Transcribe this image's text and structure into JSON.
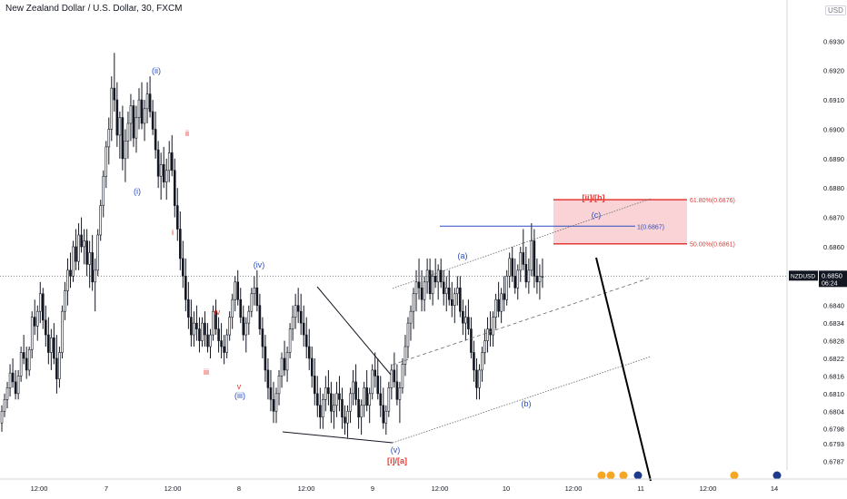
{
  "title": "New Zealand Dollar / U.S. Dollar, 30, FXCM",
  "currency_badge": "USD",
  "price_tag": {
    "symbol": "NZDUSD",
    "price": "0.6850",
    "countdown": "06:24"
  },
  "colors": {
    "up": "#131722",
    "down": "#131722",
    "red": "#e53935",
    "blue": "#2a4dc0",
    "fib_box": "#f8c8cc"
  },
  "chart_data": {
    "type": "candlestick",
    "title": "New Zealand Dollar / U.S. Dollar, 30, FXCM",
    "xlabel": "",
    "ylabel": "",
    "ylim": [
      0.6784,
      0.6944
    ],
    "yticks": [
      "0.6930",
      "0.6920",
      "0.6910",
      "0.6900",
      "0.6890",
      "0.6880",
      "0.6870",
      "0.6860",
      "0.6850",
      "0.6840",
      "0.6834",
      "0.6828",
      "0.6822",
      "0.6816",
      "0.6810",
      "0.6804",
      "0.6798",
      "0.6793",
      "0.6787"
    ],
    "xticks": [
      "12:00",
      "7",
      "12:00",
      "8",
      "12:00",
      "9",
      "12:00",
      "10",
      "12:00",
      "11",
      "12:00",
      "14"
    ],
    "current_price": 0.685,
    "fib_levels": [
      {
        "label": "61.80%(0.6876)",
        "value": 0.6876
      },
      {
        "label": "50.00%(0.6861)",
        "value": 0.6861
      },
      {
        "label": "1(0.6867)",
        "value": 0.6867
      }
    ],
    "wave_labels": [
      {
        "text": "(ii)",
        "price": 0.692,
        "idx": 58,
        "color": "blue"
      },
      {
        "text": "ii",
        "price": 0.6896,
        "idx": 69,
        "color": "red"
      },
      {
        "text": "(i)",
        "price": 0.688,
        "idx": 50,
        "color": "blue"
      },
      {
        "text": "i",
        "price": 0.6862,
        "idx": 63,
        "color": "red"
      },
      {
        "text": "(iv)",
        "price": 0.6853,
        "idx": 95,
        "color": "blue"
      },
      {
        "text": "iv",
        "price": 0.6838,
        "idx": 80,
        "color": "red"
      },
      {
        "text": "iii",
        "price": 0.6822,
        "idx": 76,
        "color": "red"
      },
      {
        "text": "v",
        "price": 0.6817,
        "idx": 88,
        "color": "red"
      },
      {
        "text": "(iii)",
        "price": 0.6814,
        "idx": 88,
        "color": "blue"
      },
      {
        "text": "(a)",
        "price": 0.6857,
        "idx": 170,
        "color": "blue"
      },
      {
        "text": "(b)",
        "price": 0.6809,
        "idx": 193,
        "color": "blue"
      },
      {
        "text": "(c)",
        "price": 0.6868,
        "idx": 218,
        "color": "blue"
      },
      {
        "text": "[ii]/[b]",
        "price": 0.6874,
        "idx": 217,
        "color": "red"
      },
      {
        "text": "(v)",
        "price": 0.6793,
        "idx": 145,
        "color": "blue"
      },
      {
        "text": "[i]/[a]",
        "price": 0.6788,
        "idx": 145,
        "color": "red"
      }
    ],
    "candles_note": "OHLC series, ~240 bars, 30-minute"
  },
  "candles": [
    [
      0.68,
      0.6806,
      0.6797,
      0.6804
    ],
    [
      0.6804,
      0.681,
      0.6802,
      0.6808
    ],
    [
      0.6808,
      0.6814,
      0.6805,
      0.6812
    ],
    [
      0.6812,
      0.682,
      0.6809,
      0.6817
    ],
    [
      0.6817,
      0.6822,
      0.6812,
      0.6814
    ],
    [
      0.6814,
      0.6818,
      0.6808,
      0.681
    ],
    [
      0.681,
      0.6818,
      0.6808,
      0.6816
    ],
    [
      0.6816,
      0.6826,
      0.6814,
      0.6824
    ],
    [
      0.6824,
      0.683,
      0.682,
      0.6822
    ],
    [
      0.6822,
      0.6826,
      0.6815,
      0.6818
    ],
    [
      0.6818,
      0.6826,
      0.6816,
      0.6825
    ],
    [
      0.6825,
      0.6838,
      0.6822,
      0.6836
    ],
    [
      0.6836,
      0.6842,
      0.683,
      0.6833
    ],
    [
      0.6833,
      0.684,
      0.6828,
      0.6838
    ],
    [
      0.6838,
      0.6848,
      0.6834,
      0.6844
    ],
    [
      0.6844,
      0.6846,
      0.6832,
      0.6835
    ],
    [
      0.6835,
      0.684,
      0.6826,
      0.683
    ],
    [
      0.683,
      0.6836,
      0.682,
      0.6824
    ],
    [
      0.6824,
      0.6832,
      0.6818,
      0.6829
    ],
    [
      0.6829,
      0.6834,
      0.682,
      0.6822
    ],
    [
      0.6822,
      0.683,
      0.681,
      0.6815
    ],
    [
      0.6815,
      0.6826,
      0.6812,
      0.6824
    ],
    [
      0.6824,
      0.684,
      0.6822,
      0.6838
    ],
    [
      0.6838,
      0.6848,
      0.6835,
      0.6845
    ],
    [
      0.6845,
      0.6856,
      0.684,
      0.6852
    ],
    [
      0.6852,
      0.6858,
      0.6846,
      0.685
    ],
    [
      0.685,
      0.6862,
      0.6848,
      0.686
    ],
    [
      0.686,
      0.6866,
      0.6852,
      0.6855
    ],
    [
      0.6855,
      0.6868,
      0.6852,
      0.6864
    ],
    [
      0.6864,
      0.687,
      0.6858,
      0.686
    ],
    [
      0.686,
      0.6866,
      0.6854,
      0.6862
    ],
    [
      0.6862,
      0.6866,
      0.685,
      0.6854
    ],
    [
      0.6854,
      0.6862,
      0.6846,
      0.6858
    ],
    [
      0.6858,
      0.6864,
      0.6845,
      0.6848
    ],
    [
      0.6848,
      0.6856,
      0.6838,
      0.6852
    ],
    [
      0.6852,
      0.6866,
      0.685,
      0.6864
    ],
    [
      0.6864,
      0.6876,
      0.6862,
      0.6874
    ],
    [
      0.6874,
      0.6886,
      0.687,
      0.6884
    ],
    [
      0.6884,
      0.6896,
      0.688,
      0.6894
    ],
    [
      0.6894,
      0.6904,
      0.6888,
      0.69
    ],
    [
      0.69,
      0.6918,
      0.6896,
      0.6914
    ],
    [
      0.6914,
      0.6926,
      0.6906,
      0.691
    ],
    [
      0.691,
      0.6916,
      0.6894,
      0.6898
    ],
    [
      0.6898,
      0.6906,
      0.689,
      0.6904
    ],
    [
      0.6904,
      0.6908,
      0.6886,
      0.689
    ],
    [
      0.689,
      0.69,
      0.6882,
      0.6896
    ],
    [
      0.6896,
      0.6906,
      0.689,
      0.6902
    ],
    [
      0.6902,
      0.6912,
      0.6896,
      0.6908
    ],
    [
      0.6908,
      0.691,
      0.6894,
      0.6897
    ],
    [
      0.6897,
      0.6908,
      0.6892,
      0.6904
    ],
    [
      0.6904,
      0.6914,
      0.69,
      0.691
    ],
    [
      0.691,
      0.6916,
      0.69,
      0.6902
    ],
    [
      0.6902,
      0.691,
      0.6896,
      0.6907
    ],
    [
      0.6907,
      0.6916,
      0.6902,
      0.6912
    ],
    [
      0.6912,
      0.6918,
      0.6904,
      0.6906
    ],
    [
      0.6906,
      0.691,
      0.6898,
      0.69
    ],
    [
      0.69,
      0.6906,
      0.689,
      0.6893
    ],
    [
      0.6893,
      0.6896,
      0.688,
      0.6884
    ],
    [
      0.6884,
      0.6892,
      0.6876,
      0.6888
    ],
    [
      0.6888,
      0.6894,
      0.688,
      0.6882
    ],
    [
      0.6882,
      0.689,
      0.6876,
      0.6886
    ],
    [
      0.6886,
      0.6896,
      0.6882,
      0.6892
    ],
    [
      0.6892,
      0.6898,
      0.6884,
      0.6886
    ],
    [
      0.6886,
      0.689,
      0.687,
      0.6874
    ],
    [
      0.6874,
      0.688,
      0.6862,
      0.6866
    ],
    [
      0.6866,
      0.6872,
      0.6852,
      0.6856
    ],
    [
      0.6856,
      0.6862,
      0.6846,
      0.685
    ],
    [
      0.685,
      0.6856,
      0.6838,
      0.6842
    ],
    [
      0.6842,
      0.6848,
      0.6832,
      0.6836
    ],
    [
      0.6836,
      0.6842,
      0.6826,
      0.683
    ],
    [
      0.683,
      0.6838,
      0.6826,
      0.6834
    ],
    [
      0.6834,
      0.684,
      0.6828,
      0.6832
    ],
    [
      0.6832,
      0.6836,
      0.6824,
      0.6828
    ],
    [
      0.6828,
      0.6836,
      0.6826,
      0.6834
    ],
    [
      0.6834,
      0.6838,
      0.6826,
      0.683
    ],
    [
      0.683,
      0.6834,
      0.6824,
      0.6826
    ],
    [
      0.6826,
      0.6832,
      0.6822,
      0.683
    ],
    [
      0.683,
      0.684,
      0.6828,
      0.6838
    ],
    [
      0.6838,
      0.6842,
      0.683,
      0.6832
    ],
    [
      0.6832,
      0.6836,
      0.6824,
      0.6828
    ],
    [
      0.6828,
      0.6834,
      0.6822,
      0.6826
    ],
    [
      0.6826,
      0.683,
      0.682,
      0.6824
    ],
    [
      0.6824,
      0.6832,
      0.6822,
      0.683
    ],
    [
      0.683,
      0.6838,
      0.6828,
      0.6836
    ],
    [
      0.6836,
      0.6844,
      0.6832,
      0.6842
    ],
    [
      0.6842,
      0.685,
      0.6838,
      0.6848
    ],
    [
      0.6848,
      0.6852,
      0.684,
      0.6842
    ],
    [
      0.6842,
      0.6846,
      0.6834,
      0.6836
    ],
    [
      0.6836,
      0.684,
      0.6828,
      0.683
    ],
    [
      0.683,
      0.6836,
      0.6824,
      0.6834
    ],
    [
      0.6834,
      0.684,
      0.683,
      0.6838
    ],
    [
      0.6838,
      0.6846,
      0.6836,
      0.6844
    ],
    [
      0.6844,
      0.685,
      0.684,
      0.6846
    ],
    [
      0.6846,
      0.6852,
      0.6838,
      0.684
    ],
    [
      0.684,
      0.6844,
      0.683,
      0.6832
    ],
    [
      0.6832,
      0.6836,
      0.6822,
      0.6826
    ],
    [
      0.6826,
      0.683,
      0.6814,
      0.6818
    ],
    [
      0.6818,
      0.6822,
      0.6808,
      0.6812
    ],
    [
      0.6812,
      0.6818,
      0.6804,
      0.6808
    ],
    [
      0.6808,
      0.6814,
      0.68,
      0.6804
    ],
    [
      0.6804,
      0.6812,
      0.68,
      0.681
    ],
    [
      0.681,
      0.6818,
      0.6806,
      0.6816
    ],
    [
      0.6816,
      0.6824,
      0.6812,
      0.6822
    ],
    [
      0.6822,
      0.6828,
      0.6816,
      0.6818
    ],
    [
      0.6818,
      0.6826,
      0.6814,
      0.6824
    ],
    [
      0.6824,
      0.6834,
      0.6822,
      0.6832
    ],
    [
      0.6832,
      0.684,
      0.6828,
      0.6836
    ],
    [
      0.6836,
      0.6844,
      0.6832,
      0.684
    ],
    [
      0.684,
      0.6846,
      0.6834,
      0.6838
    ],
    [
      0.6838,
      0.6844,
      0.683,
      0.6834
    ],
    [
      0.6834,
      0.684,
      0.6826,
      0.683
    ],
    [
      0.683,
      0.6836,
      0.6822,
      0.6826
    ],
    [
      0.6826,
      0.6832,
      0.6818,
      0.6822
    ],
    [
      0.6822,
      0.6826,
      0.6812,
      0.6816
    ],
    [
      0.6816,
      0.6822,
      0.6806,
      0.681
    ],
    [
      0.681,
      0.6816,
      0.6802,
      0.6806
    ],
    [
      0.6806,
      0.6812,
      0.6798,
      0.6802
    ],
    [
      0.6802,
      0.681,
      0.6798,
      0.6808
    ],
    [
      0.6808,
      0.6816,
      0.6804,
      0.6812
    ],
    [
      0.6812,
      0.6818,
      0.6806,
      0.681
    ],
    [
      0.681,
      0.6814,
      0.68,
      0.6804
    ],
    [
      0.6804,
      0.681,
      0.6798,
      0.6806
    ],
    [
      0.6806,
      0.6814,
      0.6802,
      0.681
    ],
    [
      0.681,
      0.6816,
      0.6804,
      0.6808
    ],
    [
      0.6808,
      0.6812,
      0.6798,
      0.6802
    ],
    [
      0.6802,
      0.6806,
      0.6796,
      0.68
    ],
    [
      0.68,
      0.6806,
      0.6795,
      0.6804
    ],
    [
      0.6804,
      0.6812,
      0.68,
      0.681
    ],
    [
      0.681,
      0.6818,
      0.6806,
      0.6814
    ],
    [
      0.6814,
      0.682,
      0.6806,
      0.6808
    ],
    [
      0.6808,
      0.6812,
      0.6798,
      0.6802
    ],
    [
      0.6802,
      0.6808,
      0.6796,
      0.6806
    ],
    [
      0.6806,
      0.6814,
      0.6802,
      0.6812
    ],
    [
      0.6812,
      0.6818,
      0.6804,
      0.6806
    ],
    [
      0.6806,
      0.6812,
      0.68,
      0.681
    ],
    [
      0.681,
      0.682,
      0.6808,
      0.6818
    ],
    [
      0.6818,
      0.6824,
      0.6812,
      0.6816
    ],
    [
      0.6816,
      0.6822,
      0.6808,
      0.681
    ],
    [
      0.681,
      0.6816,
      0.6802,
      0.6806
    ],
    [
      0.6806,
      0.6812,
      0.6798,
      0.68
    ],
    [
      0.68,
      0.6806,
      0.6796,
      0.6804
    ],
    [
      0.6804,
      0.6814,
      0.6802,
      0.6812
    ],
    [
      0.6812,
      0.682,
      0.6808,
      0.6818
    ],
    [
      0.6818,
      0.6824,
      0.6812,
      0.6814
    ],
    [
      0.6814,
      0.682,
      0.6806,
      0.6808
    ],
    [
      0.6808,
      0.6814,
      0.68,
      0.6812
    ],
    [
      0.6812,
      0.6822,
      0.681,
      0.682
    ],
    [
      0.682,
      0.683,
      0.6816,
      0.6826
    ],
    [
      0.6826,
      0.6836,
      0.6822,
      0.6834
    ],
    [
      0.6834,
      0.684,
      0.6828,
      0.6838
    ],
    [
      0.6838,
      0.6846,
      0.6832,
      0.6844
    ],
    [
      0.6844,
      0.6852,
      0.6838,
      0.6848
    ],
    [
      0.6848,
      0.6856,
      0.6842,
      0.6846
    ],
    [
      0.6846,
      0.6852,
      0.6838,
      0.6842
    ],
    [
      0.6842,
      0.685,
      0.6838,
      0.6848
    ],
    [
      0.6848,
      0.6856,
      0.6844,
      0.6852
    ],
    [
      0.6852,
      0.6856,
      0.6842,
      0.6844
    ],
    [
      0.6844,
      0.6852,
      0.684,
      0.685
    ],
    [
      0.685,
      0.6856,
      0.6846,
      0.6848
    ],
    [
      0.6848,
      0.6854,
      0.6842,
      0.6852
    ],
    [
      0.6852,
      0.6856,
      0.6846,
      0.6848
    ],
    [
      0.6848,
      0.6852,
      0.684,
      0.6844
    ],
    [
      0.6844,
      0.685,
      0.6838,
      0.6846
    ],
    [
      0.6846,
      0.6852,
      0.684,
      0.6842
    ],
    [
      0.6842,
      0.6848,
      0.6836,
      0.684
    ],
    [
      0.684,
      0.6846,
      0.6834,
      0.6844
    ],
    [
      0.6844,
      0.685,
      0.684,
      0.6846
    ],
    [
      0.6846,
      0.685,
      0.6836,
      0.6838
    ],
    [
      0.6838,
      0.6842,
      0.683,
      0.6834
    ],
    [
      0.6834,
      0.684,
      0.6828,
      0.6836
    ],
    [
      0.6836,
      0.6842,
      0.683,
      0.6832
    ],
    [
      0.6832,
      0.6836,
      0.6822,
      0.6824
    ],
    [
      0.6824,
      0.6828,
      0.6814,
      0.6818
    ],
    [
      0.6818,
      0.6822,
      0.6808,
      0.6812
    ],
    [
      0.6812,
      0.682,
      0.6808,
      0.6818
    ],
    [
      0.6818,
      0.6826,
      0.6814,
      0.6824
    ],
    [
      0.6824,
      0.6832,
      0.682,
      0.6828
    ],
    [
      0.6828,
      0.6836,
      0.6824,
      0.6832
    ],
    [
      0.6832,
      0.6838,
      0.6826,
      0.683
    ],
    [
      0.683,
      0.6838,
      0.6826,
      0.6836
    ],
    [
      0.6836,
      0.6844,
      0.6832,
      0.6842
    ],
    [
      0.6842,
      0.6848,
      0.6836,
      0.6838
    ],
    [
      0.6838,
      0.6846,
      0.6834,
      0.6844
    ],
    [
      0.6844,
      0.685,
      0.6838,
      0.6842
    ],
    [
      0.6842,
      0.6852,
      0.684,
      0.685
    ],
    [
      0.685,
      0.6858,
      0.6846,
      0.6856
    ],
    [
      0.6856,
      0.686,
      0.6848,
      0.685
    ],
    [
      0.685,
      0.6856,
      0.6844,
      0.6846
    ],
    [
      0.6846,
      0.6854,
      0.6842,
      0.6852
    ],
    [
      0.6852,
      0.686,
      0.6848,
      0.6858
    ],
    [
      0.6858,
      0.6866,
      0.6852,
      0.6854
    ],
    [
      0.6854,
      0.686,
      0.6846,
      0.6848
    ],
    [
      0.6848,
      0.6856,
      0.6844,
      0.6852
    ],
    [
      0.6852,
      0.6868,
      0.685,
      0.6862
    ],
    [
      0.6862,
      0.6866,
      0.6846,
      0.685
    ],
    [
      0.685,
      0.6856,
      0.6844,
      0.6848
    ],
    [
      0.6848,
      0.6854,
      0.6842,
      0.685
    ],
    [
      0.685,
      0.6856,
      0.6846,
      0.685
    ]
  ]
}
